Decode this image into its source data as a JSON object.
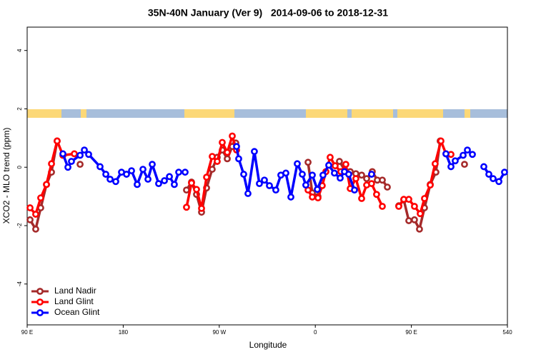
{
  "chart_data": {
    "type": "line",
    "title": "35N-40N January (Ver 9)   2014-09-06 to 2018-12-31",
    "x_label": "Longitude",
    "y_label": "XCO2 - MLO trend (ppm)",
    "xlim": [
      90,
      540
    ],
    "xticks": [
      {
        "value": 90,
        "label": "90 E"
      },
      180,
      {
        "value": 270,
        "label": "90 W"
      },
      {
        "value": 360,
        "label": "0"
      },
      {
        "value": 450,
        "label": "90 E"
      },
      540
    ],
    "ylim": [
      -5.4,
      4.8
    ],
    "yticks": [
      -4,
      -2,
      0,
      2,
      4
    ],
    "legend": "bottom-left",
    "series": [
      {
        "name": "Land Nadir",
        "color": "#a52a2a",
        "x": [
          92.7,
          98.0,
          102.7,
          108.1,
          112.8,
          118.1,
          null,
          139.6,
          null,
          239.3,
          244.0,
          248.7,
          253.4,
          258.1,
          263.4,
          268.1,
          272.8,
          277.5,
          282.2,
          285.5,
          null,
          353.2,
          357.2,
          362.5,
          null,
          382.6,
          388.6,
          392.7,
          398.0,
          403.4,
          408.1,
          413.4,
          418.1,
          422.8,
          427.5,
          null,
          438.2,
          442.9,
          447.6,
          452.9,
          457.6,
          462.3,
          467.7,
          473.0,
          477.0,
          null,
          499.8
        ],
        "values": [
          -1.8,
          -2.12,
          -1.39,
          -0.59,
          -0.17,
          0.9,
          null,
          0.1,
          null,
          -0.78,
          -0.51,
          -0.93,
          -1.54,
          -0.71,
          -0.07,
          0.34,
          0.59,
          0.29,
          0.71,
          0.83,
          null,
          0.17,
          -0.88,
          -1.0,
          null,
          0.2,
          -0.15,
          -0.15,
          -0.22,
          -0.27,
          -0.39,
          -0.15,
          -0.44,
          -0.44,
          -0.68,
          null,
          -1.32,
          -1.12,
          -1.83,
          -1.8,
          -2.12,
          -1.39,
          -0.59,
          -0.17,
          0.9,
          null,
          0.1
        ]
      },
      {
        "name": "Land Glint",
        "color": "#ff0000",
        "x": [
          92.7,
          98.0,
          102.7,
          108.1,
          112.8,
          118.1,
          123.5,
          134.2,
          null,
          239.3,
          244.0,
          248.7,
          253.4,
          258.1,
          263.4,
          268.1,
          272.8,
          277.5,
          282.2,
          286.2,
          null,
          353.2,
          357.2,
          362.5,
          366.5,
          369.9,
          373.9,
          378.6,
          383.9,
          388.6,
          392.7,
          398.0,
          403.4,
          408.1,
          412.7,
          417.4,
          422.8,
          null,
          438.2,
          442.9,
          447.6,
          452.9,
          458.3,
          462.3,
          467.7,
          472.3,
          477.7,
          482.4,
          487.1
        ],
        "values": [
          -1.39,
          -1.61,
          -1.05,
          -0.59,
          0.12,
          0.9,
          0.41,
          0.46,
          null,
          -1.37,
          -0.54,
          -0.76,
          -1.41,
          -0.34,
          0.37,
          0.2,
          0.85,
          0.51,
          1.07,
          0.59,
          null,
          -0.78,
          -1.02,
          -1.05,
          -0.63,
          -0.15,
          0.34,
          0.05,
          -0.15,
          0.1,
          -0.73,
          -0.39,
          -1.07,
          -0.61,
          -0.56,
          -0.93,
          -1.34,
          null,
          -1.34,
          -1.1,
          -1.1,
          -1.34,
          -1.59,
          -1.07,
          -0.61,
          0.12,
          0.9,
          0.46,
          0.44
        ]
      },
      {
        "name": "Ocean Glint",
        "color": "#0000ff",
        "x": [
          123.5,
          128.2,
          131.5,
          139.6,
          143.6,
          147.6,
          158.3,
          163.7,
          167.7,
          173.0,
          178.4,
          183.1,
          187.8,
          193.1,
          198.5,
          203.2,
          207.2,
          213.2,
          218.6,
          223.3,
          227.9,
          232.0,
          238.0,
          null,
          286.2,
          288.2,
          292.9,
          296.9,
          302.9,
          307.6,
          312.3,
          317.0,
          323.0,
          327.7,
          332.4,
          337.1,
          343.1,
          347.8,
          351.1,
          357.2,
          361.9,
          367.2,
          372.6,
          377.9,
          383.3,
          387.3,
          391.3,
          396.7,
          null,
          412.7,
          null,
          482.4,
          487.1,
          491.1,
          498.5,
          502.5,
          507.2,
          null,
          517.9,
          522.6,
          526.6,
          532.0,
          537.3
        ],
        "values": [
          0.46,
          0.0,
          0.2,
          0.41,
          0.59,
          0.44,
          0.02,
          -0.24,
          -0.41,
          -0.49,
          -0.17,
          -0.24,
          -0.12,
          -0.59,
          -0.07,
          -0.41,
          0.1,
          -0.56,
          -0.46,
          -0.32,
          -0.59,
          -0.17,
          -0.17,
          null,
          0.71,
          0.29,
          -0.24,
          -0.9,
          0.54,
          -0.56,
          -0.44,
          -0.63,
          -0.78,
          -0.27,
          -0.2,
          -1.02,
          0.12,
          -0.24,
          -0.61,
          -0.27,
          -0.76,
          -0.27,
          0.07,
          -0.2,
          -0.37,
          -0.15,
          -0.24,
          -0.78,
          null,
          -0.24,
          null,
          0.46,
          0.02,
          0.22,
          0.41,
          0.59,
          0.44,
          null,
          0.02,
          -0.24,
          -0.39,
          -0.49,
          -0.17
        ]
      }
    ]
  }
}
